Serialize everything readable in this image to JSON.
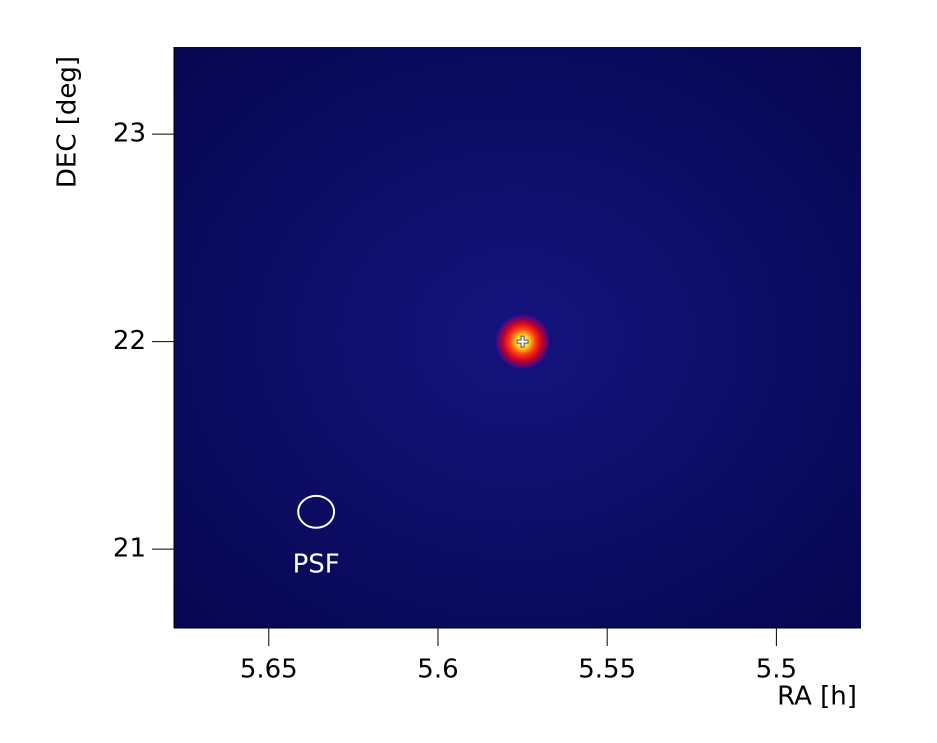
{
  "chart_data": {
    "type": "skymap",
    "xlabel": "RA [h]",
    "ylabel": "DEC [deg]",
    "xlim": [
      5.678,
      5.475
    ],
    "ylim": [
      20.62,
      23.42
    ],
    "xticks": [
      5.65,
      5.6,
      5.55,
      5.5
    ],
    "yticks": [
      21,
      22,
      23
    ],
    "background": "#0d0d72",
    "source": {
      "x": 5.575,
      "y": 22.0,
      "radius": 0.14,
      "colors": [
        "#ffffe0",
        "#ffd21e",
        "#ff3a10",
        "#c0002a",
        "#3a0a8a"
      ]
    },
    "psf": {
      "label": "PSF",
      "x": 5.636,
      "y": 21.18,
      "rx": 0.0053,
      "ry": 0.077,
      "color": "#ffffff"
    }
  }
}
